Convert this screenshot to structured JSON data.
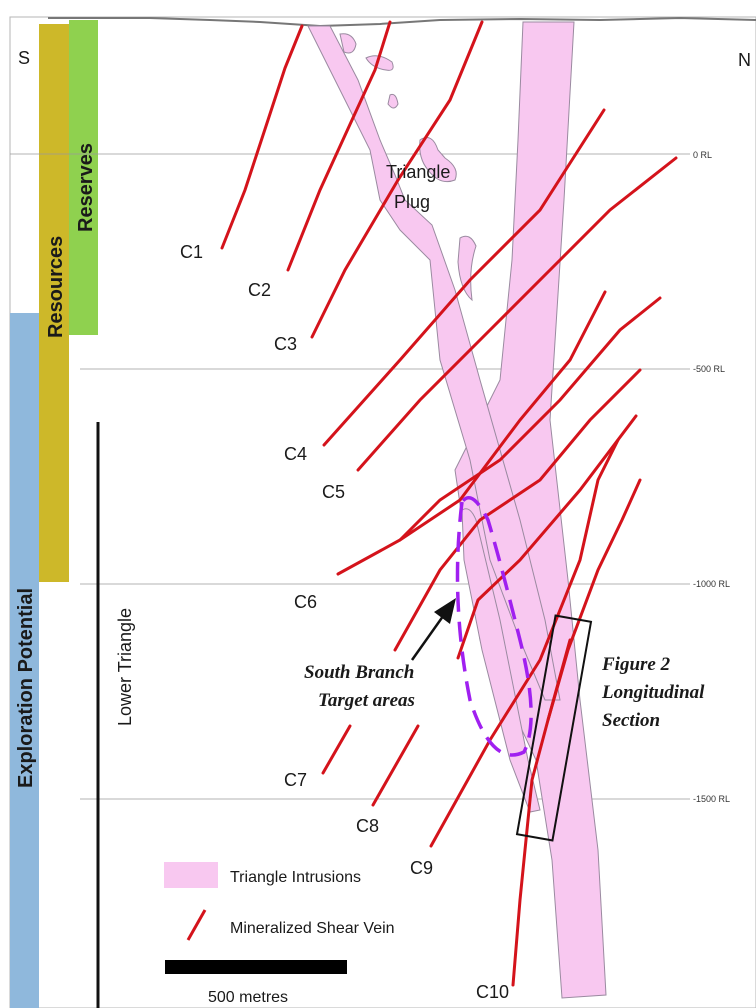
{
  "directions": {
    "south": "S",
    "north": "N"
  },
  "rl_levels": [
    "0 RL",
    "-500 RL",
    "-1000 RL",
    "-1500 RL"
  ],
  "bands": {
    "resources": "Resources",
    "reserves": "Reserves",
    "exploration": "Exploration Potential"
  },
  "lower_triangle": "Lower Triangle",
  "plug_label": [
    "Triangle",
    "Plug"
  ],
  "veins": [
    "C1",
    "C2",
    "C3",
    "C4",
    "C5",
    "C6",
    "C7",
    "C8",
    "C9",
    "C10"
  ],
  "target_label": [
    "South Branch",
    "Target areas"
  ],
  "figure_label": [
    "Figure 2",
    "Longitudinal",
    "Section"
  ],
  "legend": {
    "intrusions": "Triangle Intrusions",
    "vein": "Mineralized Shear Vein"
  },
  "scale": "500 metres",
  "colors": {
    "intrusion_fill": "#f8c8f0",
    "intrusion_stroke": "#9a8aa0",
    "vein": "#d4131b",
    "resources_band": "#cdb829",
    "reserves_band": "#8fd14f",
    "exploration_band": "#8fb8dc",
    "target_outline": "#a020f0"
  }
}
